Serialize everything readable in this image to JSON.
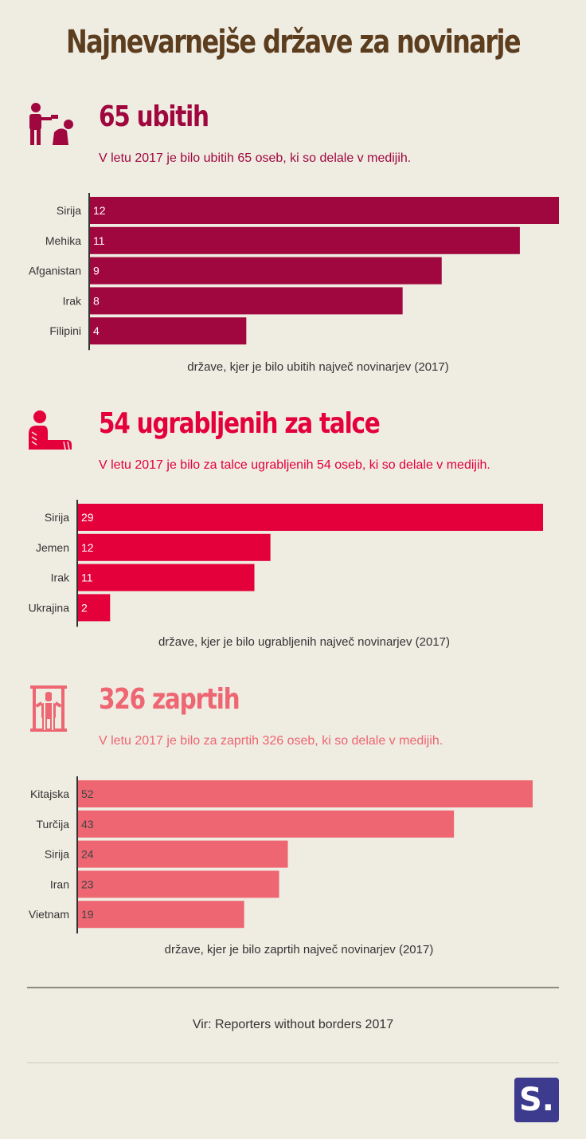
{
  "title": "Najnevarnejše države za novinarje",
  "source": "Vir: Reporters without borders 2017",
  "logo_text": "S.",
  "chart_data": [
    {
      "type": "bar",
      "orientation": "horizontal",
      "title": "65 ubitih",
      "subtitle": "V letu 2017 je bilo ubitih 65 oseb, ki so delale v medijih.",
      "icon": "killed-journalist-icon",
      "color": "#a0073f",
      "value_text_color": "#ffffff",
      "categories": [
        "Sirija",
        "Mehika",
        "Afganistan",
        "Irak",
        "Filipini"
      ],
      "values": [
        12,
        11,
        9,
        8,
        4
      ],
      "xlabel": "države, kjer je bilo ubitih največ novinarjev (2017)",
      "xlim": [
        0,
        12
      ],
      "grid": false
    },
    {
      "type": "bar",
      "orientation": "horizontal",
      "title": "54 ugrabljenih za talce",
      "subtitle": "V letu 2017 je bilo za talce ugrabljenih 54 oseb, ki so delale v medijih.",
      "icon": "hostage-icon",
      "color": "#e4003a",
      "value_text_color": "#ffffff",
      "categories": [
        "Sirija",
        "Jemen",
        "Irak",
        "Ukrajina"
      ],
      "values": [
        29,
        12,
        11,
        2
      ],
      "xlabel": "države, kjer je bilo ugrabljenih največ novinarjev (2017)",
      "xlim": [
        0,
        29
      ],
      "grid": false
    },
    {
      "type": "bar",
      "orientation": "horizontal",
      "title": "326 zaprtih",
      "subtitle": "V letu 2017 je bilo za zaprtih 326 oseb, ki so delale v medijih.",
      "icon": "prisoner-icon",
      "color": "#ed6672",
      "value_text_color": "#444444",
      "categories": [
        "Kitajska",
        "Turčija",
        "Sirija",
        "Iran",
        "Vietnam"
      ],
      "values": [
        52,
        43,
        24,
        23,
        19
      ],
      "xlabel": "države, kjer je bilo zaprtih največ novinarjev (2017)",
      "xlim": [
        0,
        52
      ],
      "grid": false
    }
  ]
}
